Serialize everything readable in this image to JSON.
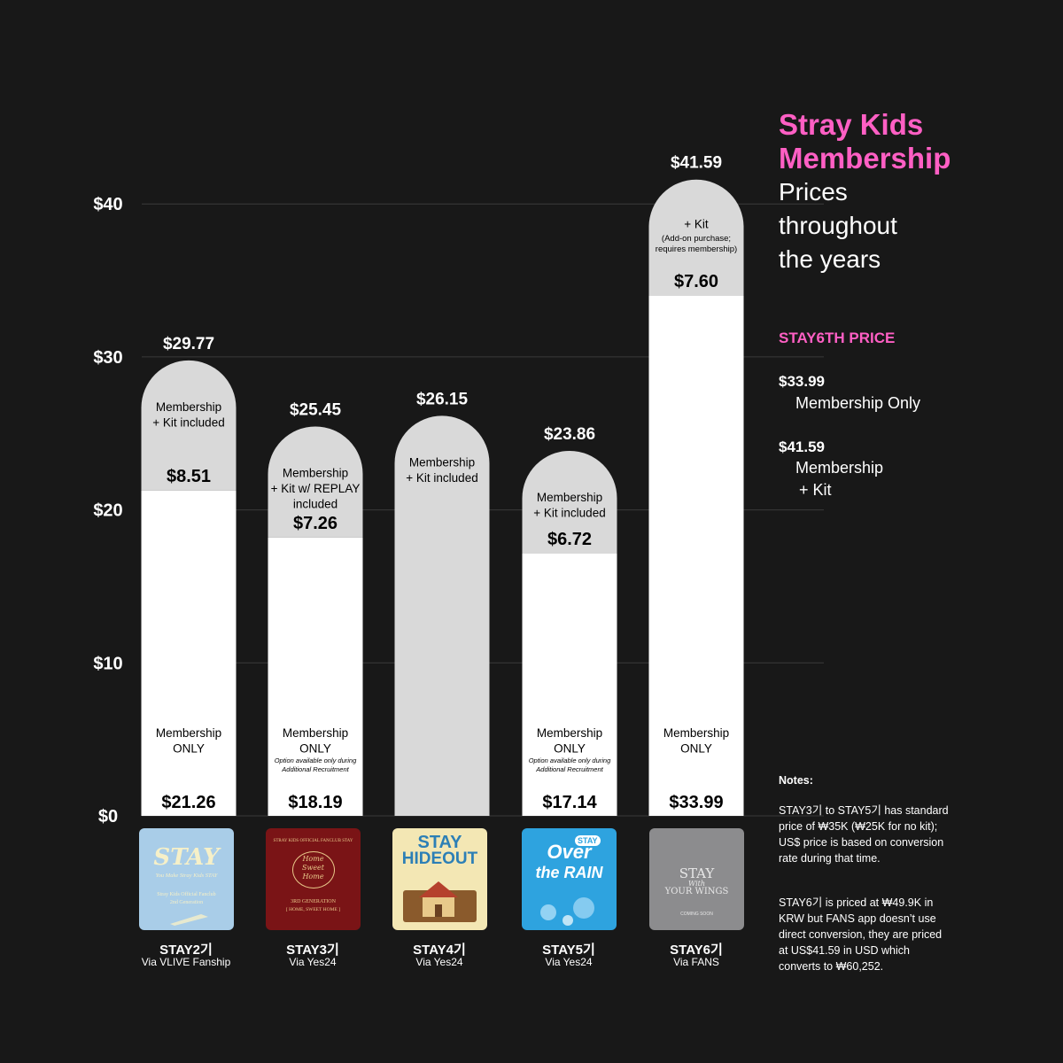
{
  "chart_data": {
    "type": "bar",
    "stacked": true,
    "y_ticks": [
      "$0",
      "$10",
      "$20",
      "$30",
      "$40"
    ],
    "ylim": [
      0,
      40
    ],
    "grid": true,
    "categories": [
      "STAY2기",
      "STAY3기",
      "STAY4기",
      "STAY5기",
      "STAY6기"
    ],
    "bars": [
      {
        "gen": "STAY2기",
        "via": "Via VLIVE Fanship",
        "total": 29.77,
        "total_label": "$29.77",
        "base": 21.26,
        "base_label": "$21.26",
        "base_desc": [
          "Membership",
          "ONLY"
        ],
        "base_note": [],
        "kit": 8.51,
        "kit_label": "$8.51",
        "kit_desc": [
          "Membership",
          "+ Kit included"
        ],
        "kit_note": []
      },
      {
        "gen": "STAY3기",
        "via": "Via Yes24",
        "total": 25.45,
        "total_label": "$25.45",
        "base": 18.19,
        "base_label": "$18.19",
        "base_desc": [
          "Membership",
          "ONLY"
        ],
        "base_note": [
          "Option available only during",
          "Additional Recruitment"
        ],
        "kit": 7.26,
        "kit_label": "$7.26",
        "kit_desc": [
          "Membership",
          "+ Kit w/ REPLAY",
          "included"
        ],
        "kit_note": []
      },
      {
        "gen": "STAY4기",
        "via": "Via Yes24",
        "total": 26.15,
        "total_label": "$26.15",
        "base": 0,
        "base_label": "",
        "base_desc": [],
        "base_note": [],
        "kit": 26.15,
        "kit_label": "",
        "kit_desc": [
          "Membership",
          "+ Kit included"
        ],
        "kit_note": []
      },
      {
        "gen": "STAY5기",
        "via": "Via Yes24",
        "total": 23.86,
        "total_label": "$23.86",
        "base": 17.14,
        "base_label": "$17.14",
        "base_desc": [
          "Membership",
          "ONLY"
        ],
        "base_note": [
          "Option available only during",
          "Additional Recruitment"
        ],
        "kit": 6.72,
        "kit_label": "$6.72",
        "kit_desc": [
          "Membership",
          "+ Kit included"
        ],
        "kit_note": []
      },
      {
        "gen": "STAY6기",
        "via": "Via FANS",
        "total": 41.59,
        "total_label": "$41.59",
        "base": 33.99,
        "base_label": "$33.99",
        "base_desc": [
          "Membership",
          "ONLY"
        ],
        "base_note": [],
        "kit": 7.6,
        "kit_label": "$7.60",
        "kit_desc": [
          "+ Kit"
        ],
        "kit_note": [
          "(Add-on purchase;",
          "requires membership)"
        ]
      }
    ],
    "colors": {
      "base": "#ffffff",
      "kit": "#d9d9d9",
      "grid": "#3a3a3a",
      "background": "#181818",
      "accent": "#ff5fc4"
    }
  },
  "covers": {
    "stay2": {
      "big": "STAY",
      "line1": "You Make Stray Kids STAY",
      "line2": "Stray Kids Official Fanclub",
      "line3": "2nd Generation"
    },
    "stay3": {
      "arc": "STRAY KIDS OFFICIAL FANCLUB STAY",
      "script1": "Home",
      "script2": "Sweet",
      "script3": "Home",
      "line1": "3RD GENERATION",
      "line2": "[ HOME, SWEET HOME ]"
    },
    "stay4": {
      "line1": "STAY",
      "line2": "HIDEOUT"
    },
    "stay5": {
      "line1": "Over",
      "line2": "STAY",
      "line3": "the RAIN"
    },
    "stay6": {
      "line1": "STAY",
      "line2": "With",
      "line3": "YOUR WINGS",
      "line4": "COMING SOON"
    }
  },
  "side": {
    "title_line1": "Stray Kids",
    "title_line2": "Membership",
    "subtitle_line1": "Prices",
    "subtitle_line2": "throughout",
    "subtitle_line3": "the years",
    "section_title": "STAY6TH PRICE",
    "price1_value": "$33.99",
    "price1_desc": "Membership Only",
    "price2_value": "$41.59",
    "price2_desc_line1": "Membership",
    "price2_desc_line2": "+ Kit"
  },
  "notes": {
    "heading": "Notes:",
    "p1": "STAY3기 to STAY5기 has standard price of ₩35K (₩25K for no kit); US$ price is based on conversion rate during that time.",
    "p2": "STAY6기 is priced at ₩49.9K in KRW but FANS app doesn’t use direct conversion, they are priced at US$41.59 in USD which converts to ₩60,252."
  }
}
